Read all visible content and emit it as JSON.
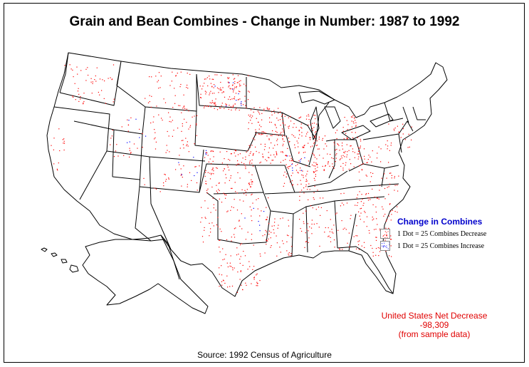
{
  "title": "Grain and Bean Combines - Change in Number:  1987 to 1992",
  "legend": {
    "title": "Change in Combines",
    "items": [
      {
        "label": "1 Dot = 25 Combines Decrease",
        "color": "#ff0000"
      },
      {
        "label": "1 Dot = 25 Combines Increase",
        "color": "#0000ff"
      }
    ]
  },
  "net_change": {
    "line1": "United States Net Decrease",
    "line2": "-98,309",
    "line3": "(from sample data)"
  },
  "source": "Source:  1992 Census of Agriculture",
  "colors": {
    "decrease_dot": "#ff0000",
    "increase_dot": "#0000ff",
    "boundary": "#000000"
  }
}
